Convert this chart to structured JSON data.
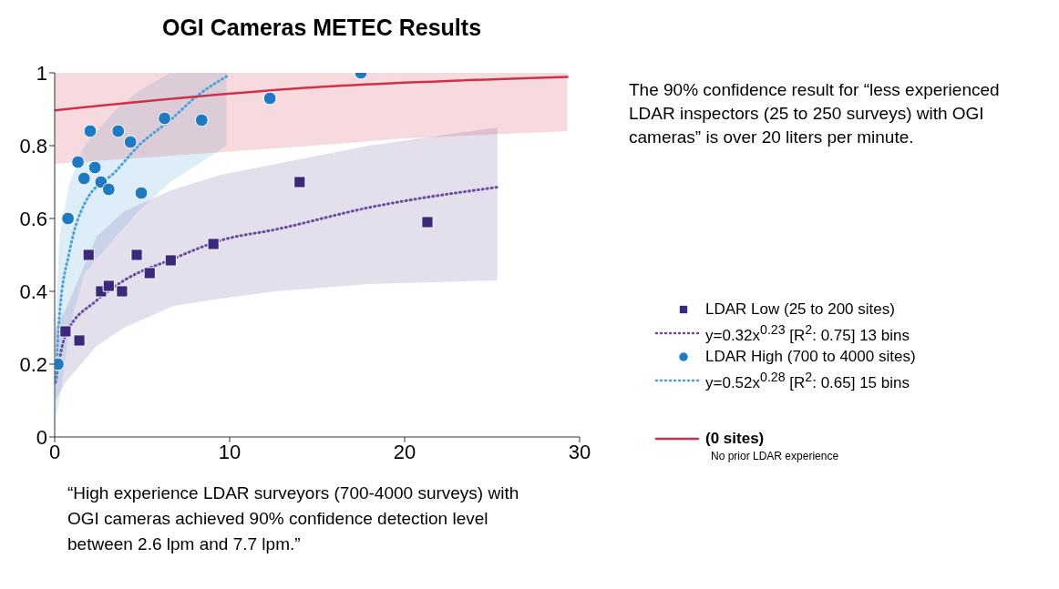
{
  "chart_data": {
    "type": "scatter",
    "title": "OGI Cameras METEC Results",
    "xlim": [
      0,
      30
    ],
    "xticks": [
      0,
      10,
      20,
      30
    ],
    "ylim": [
      0,
      1
    ],
    "yticks": [
      0,
      0.2,
      0.4,
      0.6,
      0.8,
      1
    ],
    "grid": false,
    "legend": "right",
    "series": [
      {
        "name": "y=0.32x$^{0.23}$ [R$^{2}$: 0.75] 13 bins",
        "type": "line",
        "color": "#6a4c9c",
        "line_style": "dotted",
        "marker": "none",
        "x": [
          0.05,
          0.62,
          2.4,
          3.97,
          6.8,
          9.5,
          12.65,
          17.96,
          25.3
        ],
        "values": [
          0.15,
          0.28,
          0.375,
          0.43,
          0.49,
          0.54,
          0.57,
          0.63,
          0.686
        ],
        "lower": [
          0.1,
          0.15,
          0.25,
          0.3,
          0.36,
          0.38,
          0.4,
          0.42,
          0.43
        ],
        "upper": [
          0.3,
          0.35,
          0.55,
          0.62,
          0.68,
          0.72,
          0.75,
          0.8,
          0.85
        ]
      },
      {
        "name": "y=0.52x$^{0.28}$ [R$^{2}$: 0.65] 15 bins",
        "type": "line",
        "color": "#4aa3d8",
        "line_style": "dotted",
        "marker": "none",
        "x": [
          0.05,
          0.27,
          0.85,
          1.7,
          3.5,
          4.8,
          6.6,
          8.23,
          9.82
        ],
        "values": [
          0.15,
          0.33,
          0.51,
          0.64,
          0.73,
          0.8,
          0.87,
          0.94,
          0.99
        ],
        "lower": [
          0.05,
          0.1,
          0.3,
          0.45,
          0.55,
          0.62,
          0.7,
          0.75,
          0.8
        ],
        "upper": [
          0.3,
          0.55,
          0.7,
          0.8,
          0.9,
          0.95,
          1,
          1,
          1
        ]
      },
      {
        "name": "(0 sites)",
        "type": "line",
        "color": "#d0304a",
        "line_style": "solid",
        "marker": "none",
        "x": [
          0,
          14.8,
          20,
          29.3
        ],
        "values": [
          0.897,
          0.96,
          0.973,
          0.989
        ],
        "lower": [
          0.75,
          0.8,
          0.82,
          0.84
        ],
        "upper": [
          1,
          1,
          1,
          1
        ]
      },
      {
        "name": "LDAR Low (25 to 200 sites)",
        "color": "#3b2a7a",
        "marker": "square",
        "x": [
          0.62,
          1.41,
          1.94,
          2.65,
          3.09,
          3.85,
          4.69,
          5.43,
          6.63,
          9.07,
          14.0,
          21.3
        ],
        "values": [
          0.29,
          0.265,
          0.5,
          0.4,
          0.415,
          0.4,
          0.5,
          0.45,
          0.485,
          0.53,
          0.7,
          0.59
        ]
      },
      {
        "name": "LDAR High (700 to 4000 sites)",
        "color": "#1f7ac4",
        "marker": "circle",
        "x": [
          0.18,
          0.76,
          1.33,
          2.03,
          1.68,
          2.3,
          2.65,
          3.09,
          3.63,
          4.33,
          4.95,
          6.28,
          8.4,
          12.3,
          17.5
        ],
        "values": [
          0.2,
          0.6,
          0.755,
          0.84,
          0.71,
          0.74,
          0.7,
          0.68,
          0.84,
          0.81,
          0.67,
          0.875,
          0.87,
          0.93,
          1.0
        ]
      }
    ],
    "annotations": [
      "The 90% confidence result for “less experienced LDAR inspectors (25 to 250 surveys) with OGI cameras” is over 20 liters per minute.",
      "“High experience LDAR surveyors (700-4000 surveys) with OGI cameras achieved 90% confidence detection level between 2.6 lpm and 7.7 lpm.”",
      "No prior LDAR experience"
    ]
  }
}
